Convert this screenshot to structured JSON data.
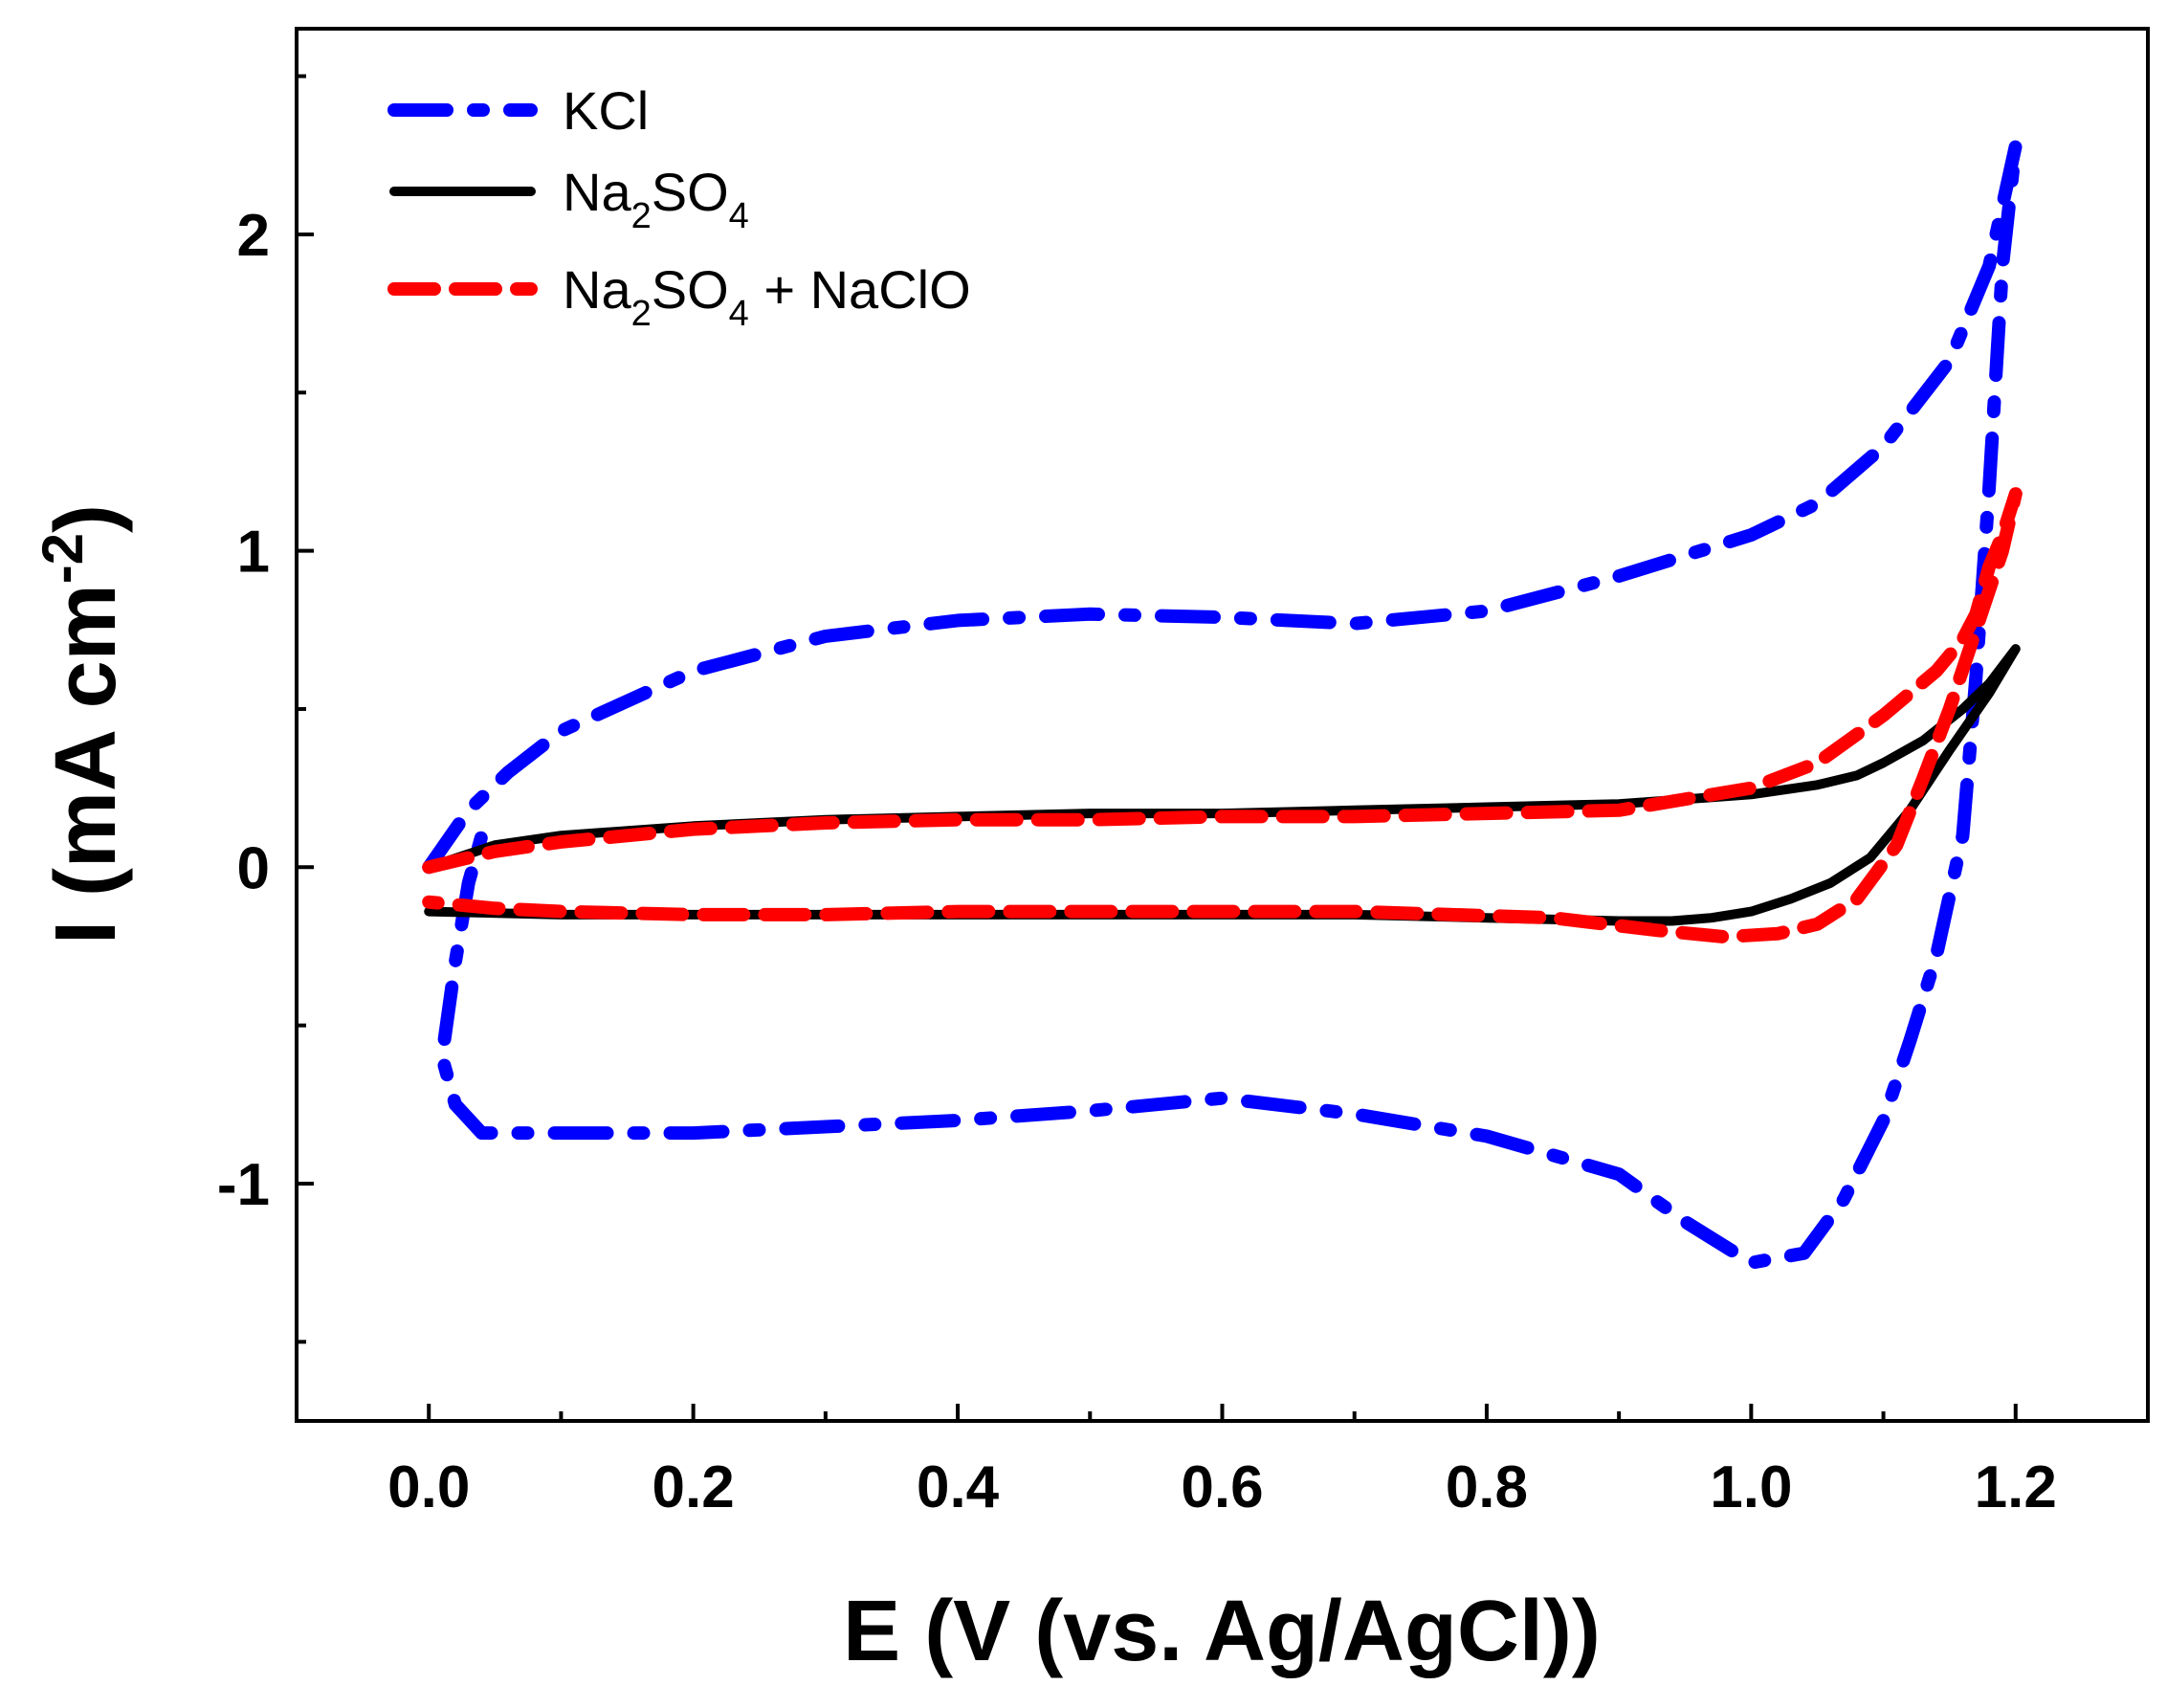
{
  "chart_data": {
    "type": "line",
    "title": "",
    "xlabel": "E (V (vs. Ag/AgCl))",
    "ylabel_main": "I (mA cm",
    "ylabel_sup": "-2",
    "ylabel_close": ")",
    "xlim": [
      -0.1,
      1.3
    ],
    "ylim": [
      -1.75,
      2.65
    ],
    "x_ticks": [
      0.0,
      0.2,
      0.4,
      0.6,
      0.8,
      1.0,
      1.2
    ],
    "x_tick_labels": [
      "0.0",
      "0.2",
      "0.4",
      "0.6",
      "0.8",
      "1.0",
      "1.2"
    ],
    "x_minor_ticks": [
      0.1,
      0.3,
      0.5,
      0.7,
      0.9,
      1.1
    ],
    "y_ticks": [
      -1,
      0,
      1,
      2
    ],
    "y_tick_labels": [
      "-1",
      "0",
      "1",
      "2"
    ],
    "y_minor_ticks": [
      -1.5,
      -0.5,
      0.5,
      1.5,
      2.5
    ],
    "grid": false,
    "legend_position": "top-left",
    "series": [
      {
        "name": "KCl",
        "legend_parts": [
          {
            "t": "KCl"
          }
        ],
        "color": "#0000ff",
        "style": "dash-dot",
        "points": [
          [
            0.0,
            0.0
          ],
          [
            0.03,
            0.18
          ],
          [
            0.06,
            0.3
          ],
          [
            0.1,
            0.43
          ],
          [
            0.2,
            0.62
          ],
          [
            0.3,
            0.73
          ],
          [
            0.4,
            0.78
          ],
          [
            0.5,
            0.8
          ],
          [
            0.6,
            0.79
          ],
          [
            0.7,
            0.77
          ],
          [
            0.8,
            0.81
          ],
          [
            0.9,
            0.92
          ],
          [
            1.0,
            1.05
          ],
          [
            1.05,
            1.15
          ],
          [
            1.1,
            1.33
          ],
          [
            1.15,
            1.6
          ],
          [
            1.18,
            1.9
          ],
          [
            1.2,
            2.28
          ],
          [
            1.19,
            1.9
          ],
          [
            1.18,
            1.2
          ],
          [
            1.17,
            0.6
          ],
          [
            1.16,
            0.1
          ],
          [
            1.14,
            -0.28
          ],
          [
            1.12,
            -0.55
          ],
          [
            1.1,
            -0.8
          ],
          [
            1.07,
            -1.05
          ],
          [
            1.04,
            -1.22
          ],
          [
            1.0,
            -1.25
          ],
          [
            0.95,
            -1.12
          ],
          [
            0.9,
            -0.97
          ],
          [
            0.8,
            -0.85
          ],
          [
            0.7,
            -0.78
          ],
          [
            0.6,
            -0.73
          ],
          [
            0.5,
            -0.77
          ],
          [
            0.4,
            -0.8
          ],
          [
            0.3,
            -0.82
          ],
          [
            0.2,
            -0.84
          ],
          [
            0.1,
            -0.84
          ],
          [
            0.04,
            -0.84
          ],
          [
            0.02,
            -0.75
          ],
          [
            0.01,
            -0.6
          ],
          [
            0.02,
            -0.3
          ],
          [
            0.03,
            -0.05
          ],
          [
            0.04,
            0.1
          ]
        ]
      },
      {
        "name": "Na2SO4",
        "legend_parts": [
          {
            "t": "Na"
          },
          {
            "t": "2",
            "sub": true
          },
          {
            "t": "SO"
          },
          {
            "t": "4",
            "sub": true
          }
        ],
        "color": "#000000",
        "style": "solid",
        "points": [
          [
            0.0,
            0.0
          ],
          [
            0.05,
            0.07
          ],
          [
            0.1,
            0.1
          ],
          [
            0.2,
            0.13
          ],
          [
            0.3,
            0.15
          ],
          [
            0.4,
            0.16
          ],
          [
            0.5,
            0.17
          ],
          [
            0.6,
            0.17
          ],
          [
            0.7,
            0.18
          ],
          [
            0.8,
            0.19
          ],
          [
            0.9,
            0.2
          ],
          [
            1.0,
            0.23
          ],
          [
            1.05,
            0.26
          ],
          [
            1.08,
            0.29
          ],
          [
            1.1,
            0.33
          ],
          [
            1.13,
            0.4
          ],
          [
            1.16,
            0.5
          ],
          [
            1.18,
            0.58
          ],
          [
            1.2,
            0.69
          ],
          [
            1.18,
            0.55
          ],
          [
            1.15,
            0.37
          ],
          [
            1.12,
            0.18
          ],
          [
            1.09,
            0.03
          ],
          [
            1.06,
            -0.05
          ],
          [
            1.03,
            -0.1
          ],
          [
            1.0,
            -0.14
          ],
          [
            0.97,
            -0.16
          ],
          [
            0.94,
            -0.17
          ],
          [
            0.9,
            -0.17
          ],
          [
            0.8,
            -0.16
          ],
          [
            0.7,
            -0.15
          ],
          [
            0.6,
            -0.15
          ],
          [
            0.5,
            -0.15
          ],
          [
            0.4,
            -0.15
          ],
          [
            0.3,
            -0.15
          ],
          [
            0.2,
            -0.15
          ],
          [
            0.1,
            -0.15
          ],
          [
            0.0,
            -0.14
          ]
        ]
      },
      {
        "name": "Na2SO4 + NaClO",
        "legend_parts": [
          {
            "t": "Na"
          },
          {
            "t": "2",
            "sub": true
          },
          {
            "t": "SO"
          },
          {
            "t": "4",
            "sub": true
          },
          {
            "t": " + NaClO"
          }
        ],
        "color": "#ff0000",
        "style": "dashed",
        "points": [
          [
            0.0,
            0.0
          ],
          [
            0.05,
            0.05
          ],
          [
            0.1,
            0.08
          ],
          [
            0.2,
            0.12
          ],
          [
            0.3,
            0.14
          ],
          [
            0.4,
            0.15
          ],
          [
            0.5,
            0.15
          ],
          [
            0.6,
            0.16
          ],
          [
            0.7,
            0.16
          ],
          [
            0.8,
            0.17
          ],
          [
            0.9,
            0.18
          ],
          [
            1.0,
            0.25
          ],
          [
            1.05,
            0.33
          ],
          [
            1.1,
            0.48
          ],
          [
            1.14,
            0.62
          ],
          [
            1.16,
            0.72
          ],
          [
            1.17,
            0.8
          ],
          [
            1.18,
            0.95
          ],
          [
            1.19,
            1.05
          ],
          [
            1.2,
            1.18
          ],
          [
            1.19,
            1.0
          ],
          [
            1.17,
            0.75
          ],
          [
            1.15,
            0.5
          ],
          [
            1.13,
            0.28
          ],
          [
            1.11,
            0.07
          ],
          [
            1.08,
            -0.1
          ],
          [
            1.05,
            -0.18
          ],
          [
            1.02,
            -0.21
          ],
          [
            0.98,
            -0.22
          ],
          [
            0.93,
            -0.2
          ],
          [
            0.85,
            -0.16
          ],
          [
            0.7,
            -0.14
          ],
          [
            0.6,
            -0.14
          ],
          [
            0.5,
            -0.14
          ],
          [
            0.4,
            -0.14
          ],
          [
            0.3,
            -0.15
          ],
          [
            0.2,
            -0.15
          ],
          [
            0.1,
            -0.14
          ],
          [
            0.05,
            -0.13
          ],
          [
            0.0,
            -0.11
          ]
        ]
      }
    ]
  }
}
